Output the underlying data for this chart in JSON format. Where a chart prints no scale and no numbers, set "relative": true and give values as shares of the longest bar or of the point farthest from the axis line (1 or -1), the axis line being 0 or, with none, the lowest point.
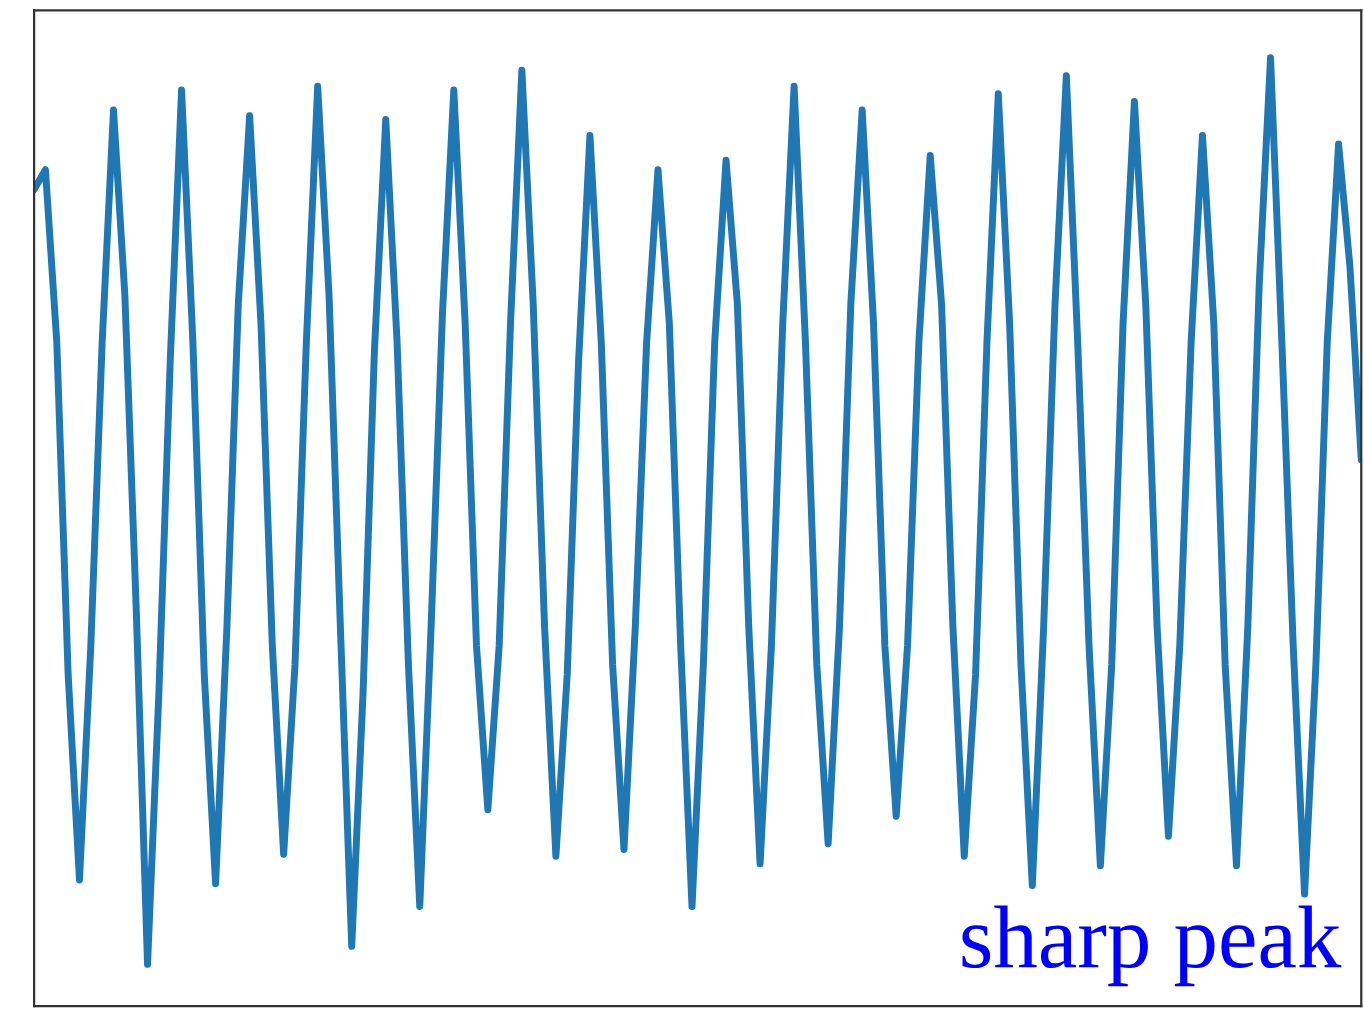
{
  "chart_data": {
    "type": "line",
    "relative": true,
    "categories": [
      null,
      null,
      null,
      null,
      null,
      null,
      null,
      null,
      null,
      null,
      null,
      null,
      null,
      null,
      null,
      null,
      null,
      null,
      null,
      null,
      null,
      null,
      null,
      null,
      null,
      null,
      null,
      null,
      null,
      null,
      null,
      null,
      null,
      null,
      null,
      null,
      null,
      null,
      null,
      null,
      null,
      null,
      null,
      null,
      null,
      null,
      null,
      null,
      null,
      null,
      null,
      null,
      null,
      null,
      null,
      null,
      null,
      null,
      null,
      null,
      null,
      null,
      null,
      null,
      null,
      null,
      null,
      null,
      null,
      null,
      null,
      null,
      null,
      null,
      null,
      null,
      null,
      null,
      null,
      null,
      null,
      null,
      null,
      null,
      null,
      null,
      null,
      null,
      null,
      null,
      null,
      null,
      null,
      null,
      null,
      null,
      null,
      null,
      null,
      null,
      null,
      null,
      null,
      null,
      null,
      null,
      null,
      null,
      null,
      null,
      null,
      null,
      null,
      null,
      null,
      null,
      null,
      null
    ],
    "series": [
      {
        "color": "#1f77b4",
        "values": [
          0.861,
          0.882,
          0.7,
          0.35,
          0.133,
          0.38,
          0.7,
          0.945,
          0.75,
          0.42,
          0.044,
          0.33,
          0.68,
          0.966,
          0.7,
          0.35,
          0.129,
          0.4,
          0.74,
          0.939,
          0.72,
          0.38,
          0.16,
          0.36,
          0.7,
          0.97,
          0.75,
          0.4,
          0.063,
          0.33,
          0.69,
          0.935,
          0.7,
          0.36,
          0.105,
          0.4,
          0.73,
          0.966,
          0.72,
          0.38,
          0.207,
          0.38,
          0.72,
          0.987,
          0.74,
          0.4,
          0.158,
          0.35,
          0.68,
          0.918,
          0.7,
          0.36,
          0.165,
          0.4,
          0.7,
          0.882,
          0.72,
          0.38,
          0.105,
          0.36,
          0.7,
          0.892,
          0.74,
          0.4,
          0.15,
          0.38,
          0.72,
          0.97,
          0.7,
          0.36,
          0.171,
          0.4,
          0.74,
          0.945,
          0.72,
          0.38,
          0.2,
          0.38,
          0.7,
          0.897,
          0.74,
          0.4,
          0.158,
          0.35,
          0.7,
          0.962,
          0.72,
          0.36,
          0.127,
          0.4,
          0.74,
          0.981,
          0.7,
          0.38,
          0.148,
          0.36,
          0.72,
          0.954,
          0.74,
          0.4,
          0.179,
          0.38,
          0.7,
          0.918,
          0.72,
          0.36,
          0.148,
          0.4,
          0.76,
          1.0,
          0.7,
          0.38,
          0.118,
          0.36,
          0.7,
          0.909,
          0.78,
          0.576
        ]
      }
    ],
    "annotations": [
      "sharp peak"
    ],
    "legend": false,
    "line_style": "solid",
    "marker": "none"
  }
}
